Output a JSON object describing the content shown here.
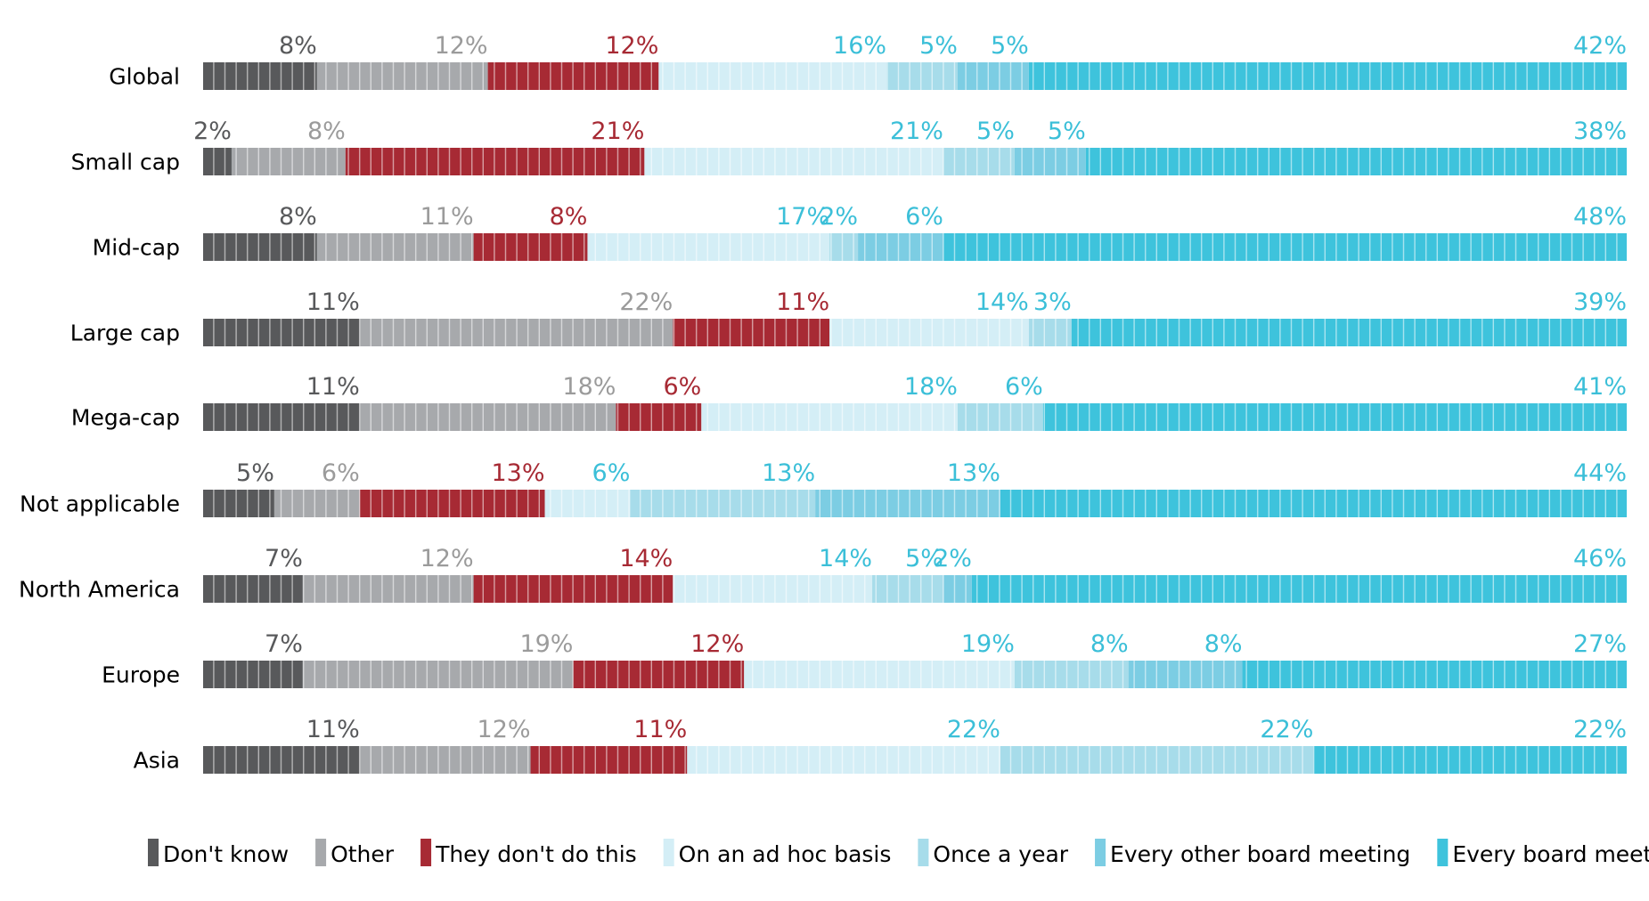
{
  "chart_data": {
    "type": "bar",
    "orientation": "horizontal",
    "stacked": true,
    "normalized": true,
    "value_suffix": "%",
    "categories": [
      "Global",
      "Small cap",
      "Mid-cap",
      "Large cap",
      "Mega-cap",
      "Not applicable",
      "North America",
      "Europe",
      "Asia"
    ],
    "series": [
      {
        "name": "Don't know",
        "color": "#58595b",
        "label_color": "#58595b",
        "values": [
          8,
          2,
          8,
          11,
          11,
          5,
          7,
          7,
          11
        ]
      },
      {
        "name": "Other",
        "color": "#a7a9ac",
        "label_color": "#9b9b9b",
        "values": [
          12,
          8,
          11,
          22,
          18,
          6,
          12,
          19,
          12
        ]
      },
      {
        "name": "They don't do this",
        "color": "#a72a34",
        "label_color": "#a72a34",
        "values": [
          12,
          21,
          8,
          11,
          6,
          13,
          14,
          12,
          11
        ]
      },
      {
        "name": "On an ad hoc basis",
        "color": "#d4eef6",
        "label_color": "#3bbfd8",
        "values": [
          16,
          21,
          17,
          14,
          18,
          6,
          14,
          19,
          22
        ]
      },
      {
        "name": "Once a year",
        "color": "#a7dcea",
        "label_color": "#3bbfd8",
        "values": [
          5,
          5,
          2,
          3,
          6,
          13,
          5,
          8,
          22
        ]
      },
      {
        "name": "Every other board meeting",
        "color": "#7ccde3",
        "label_color": "#3bbfd8",
        "values": [
          5,
          5,
          6,
          null,
          null,
          13,
          2,
          8,
          null
        ]
      },
      {
        "name": "Every board meeting",
        "color": "#3ec3dc",
        "label_color": "#3bbfd8",
        "values": [
          42,
          38,
          48,
          39,
          41,
          44,
          46,
          27,
          22
        ]
      }
    ],
    "legend_position": "bottom",
    "grid": false
  }
}
